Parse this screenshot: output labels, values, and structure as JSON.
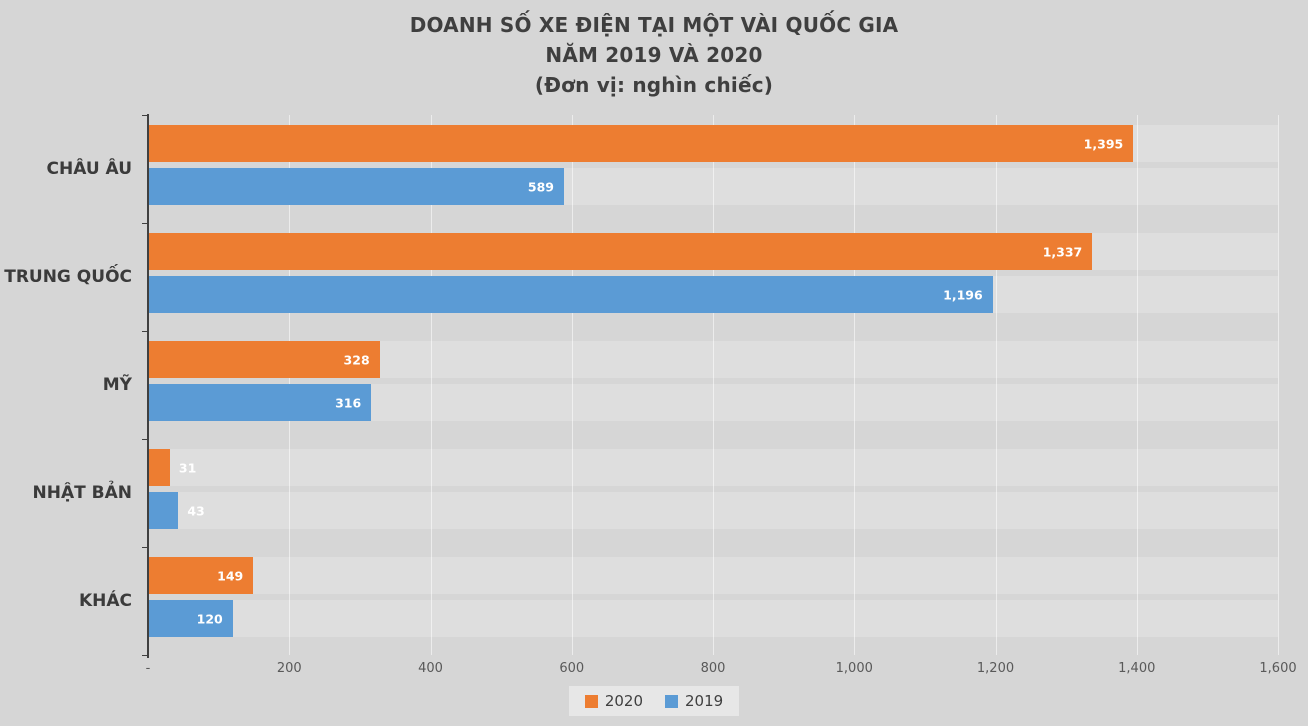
{
  "title": {
    "line1": "DOANH SỐ XE ĐIỆN TẠI MỘT VÀI QUỐC GIA",
    "line2": "NĂM 2019 VÀ 2020",
    "line3": "(Đơn vị: nghìn chiếc)"
  },
  "chart_data": {
    "type": "bar",
    "orientation": "horizontal",
    "title": "DOANH SỐ XE ĐIỆN TẠI MỘT VÀI QUỐC GIA NĂM 2019 VÀ 2020 (Đơn vị: nghìn chiếc)",
    "categories": [
      "CHÂU ÂU",
      "TRUNG QUỐC",
      "MỸ",
      "NHẬT BẢN",
      "KHÁC"
    ],
    "series": [
      {
        "name": "2020",
        "color": "#ED7D31",
        "values": [
          1395,
          1337,
          328,
          31,
          149
        ],
        "labels": [
          "1,395",
          "1,337",
          "328",
          "31",
          "149"
        ]
      },
      {
        "name": "2019",
        "color": "#5B9BD5",
        "values": [
          589,
          1196,
          316,
          43,
          120
        ],
        "labels": [
          "589",
          "1,196",
          "316",
          "43",
          "120"
        ]
      }
    ],
    "x_axis": {
      "min": 0,
      "max": 1600,
      "tick_interval": 200,
      "tick_labels": [
        "-",
        "200",
        "400",
        "600",
        "800",
        "1,000",
        "1,200",
        "1,400",
        "1,600"
      ]
    },
    "legend": [
      "2020",
      "2019"
    ],
    "legend_position": "bottom",
    "grid": true
  },
  "colors": {
    "background": "#D6D6D6",
    "track": "#DEDEDE",
    "axis": "#404040",
    "title_text": "#3F3F3F",
    "category_text": "#3B3B3B",
    "tick_text": "#595959",
    "bar_label_text": "#FFFFFF",
    "legend_background": "#E7E7E7",
    "series_2020": "#ED7D31",
    "series_2019": "#5B9BD5"
  }
}
